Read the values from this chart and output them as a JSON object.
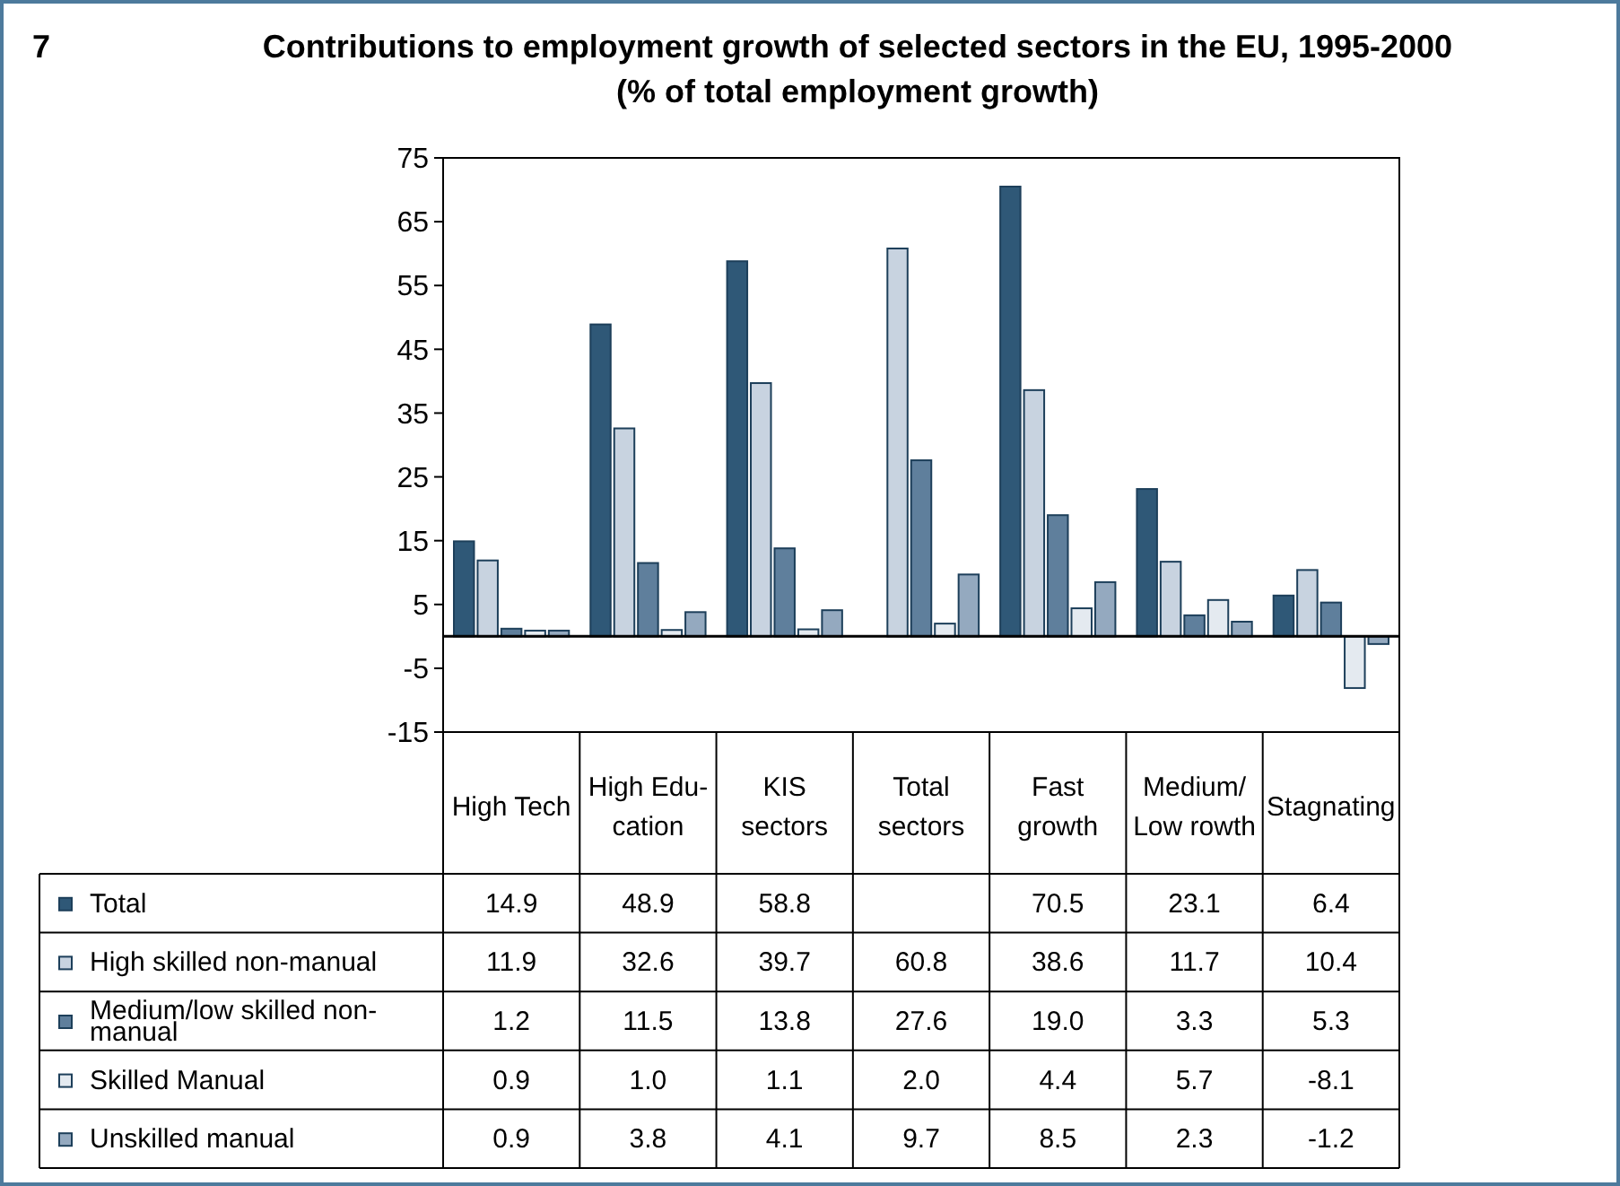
{
  "chart_data": {
    "type": "bar",
    "title": "Contributions to employment growth of selected sectors in the EU, 1995-2000",
    "subtitle": "(% of total employment growth)",
    "annotations": [
      "7"
    ],
    "categories": [
      "High Tech",
      "High Edu-cation",
      "KIS sectors",
      "Total sectors",
      "Fast growth",
      "Medium/ Low rowth",
      "Stagnating"
    ],
    "series": [
      {
        "name": "Total",
        "color": "#2f5877",
        "values": [
          14.9,
          48.9,
          58.8,
          null,
          70.5,
          23.1,
          6.4
        ],
        "value_labels": [
          "14.9",
          "48.9",
          "58.8",
          null,
          "70.5",
          "23.1",
          "6.4"
        ]
      },
      {
        "name": "High skilled non-manual",
        "color": "#c8d3e0",
        "values": [
          11.9,
          32.6,
          39.7,
          60.8,
          38.6,
          11.7,
          10.4
        ],
        "value_labels": [
          "11.9",
          "32.6",
          "39.7",
          "60.8",
          "38.6",
          "11.7",
          "10.4"
        ]
      },
      {
        "name": "Medium/low skilled non-manual",
        "color": "#5f7f9c",
        "values": [
          1.2,
          11.5,
          13.8,
          27.6,
          19.0,
          3.3,
          5.3
        ],
        "value_labels": [
          "1.2",
          "11.5",
          "13.8",
          "27.6",
          "19.0",
          "3.3",
          "5.3"
        ]
      },
      {
        "name": "Skilled Manual",
        "color": "#e4eaf0",
        "values": [
          0.9,
          1.0,
          1.1,
          2.0,
          4.4,
          5.7,
          -8.1
        ],
        "value_labels": [
          "0.9",
          "1.0",
          "1.1",
          "2.0",
          "4.4",
          "5.7",
          "-8.1"
        ]
      },
      {
        "name": "Unskilled manual",
        "color": "#94a9bf",
        "values": [
          0.9,
          3.8,
          4.1,
          9.7,
          8.5,
          2.3,
          -1.2
        ],
        "value_labels": [
          "0.9",
          "3.8",
          "4.1",
          "9.7",
          "8.5",
          "2.3",
          "-1.2"
        ]
      }
    ],
    "ylim": [
      -15,
      75
    ],
    "yticks": [
      -15,
      -5,
      5,
      15,
      25,
      35,
      45,
      55,
      65,
      75
    ],
    "grid": false,
    "legend": "bottom"
  }
}
